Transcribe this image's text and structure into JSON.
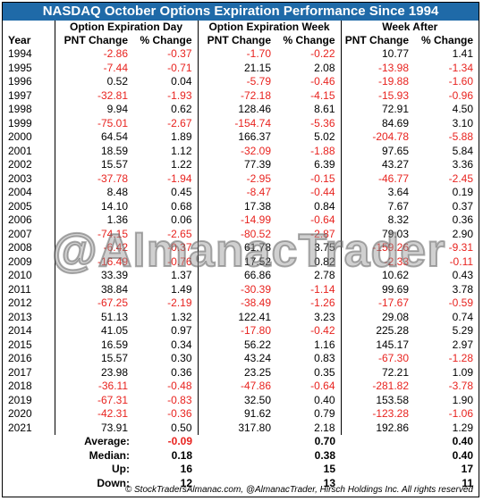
{
  "title": "NASDAQ October Options Expiration Performance Since 1994",
  "group_headers": [
    "Option Expiration Day",
    "Option Expiration Week",
    "Week After"
  ],
  "column_headers": [
    "Year",
    "PNT Change",
    "% Change",
    "PNT Change",
    "% Change",
    "PNT Change",
    "% Change"
  ],
  "rows": [
    [
      "1994",
      "-2.86",
      "-0.37",
      "-1.70",
      "-0.22",
      "10.77",
      "1.41"
    ],
    [
      "1995",
      "-7.44",
      "-0.71",
      "21.15",
      "2.08",
      "-13.98",
      "-1.34"
    ],
    [
      "1996",
      "0.52",
      "0.04",
      "-5.79",
      "-0.46",
      "-19.88",
      "-1.60"
    ],
    [
      "1997",
      "-32.81",
      "-1.93",
      "-72.18",
      "-4.15",
      "-15.93",
      "-0.96"
    ],
    [
      "1998",
      "9.94",
      "0.62",
      "128.46",
      "8.61",
      "72.91",
      "4.50"
    ],
    [
      "1999",
      "-75.01",
      "-2.67",
      "-154.74",
      "-5.36",
      "84.69",
      "3.10"
    ],
    [
      "2000",
      "64.54",
      "1.89",
      "166.37",
      "5.02",
      "-204.78",
      "-5.88"
    ],
    [
      "2001",
      "18.59",
      "1.12",
      "-32.09",
      "-1.88",
      "97.65",
      "5.84"
    ],
    [
      "2002",
      "15.57",
      "1.22",
      "77.39",
      "6.39",
      "43.27",
      "3.36"
    ],
    [
      "2003",
      "-37.78",
      "-1.94",
      "-2.95",
      "-0.15",
      "-46.77",
      "-2.45"
    ],
    [
      "2004",
      "8.48",
      "0.45",
      "-8.47",
      "-0.44",
      "3.64",
      "0.19"
    ],
    [
      "2005",
      "14.10",
      "0.68",
      "17.38",
      "0.84",
      "7.67",
      "0.37"
    ],
    [
      "2006",
      "1.36",
      "0.06",
      "-14.99",
      "-0.64",
      "8.32",
      "0.36"
    ],
    [
      "2007",
      "-74.15",
      "-2.65",
      "-80.52",
      "-2.87",
      "79.03",
      "2.90"
    ],
    [
      "2008",
      "-6.42",
      "-0.37",
      "61.78",
      "3.75",
      "-159.26",
      "-9.31"
    ],
    [
      "2009",
      "-16.49",
      "-0.76",
      "17.52",
      "0.82",
      "-2.33",
      "-0.11"
    ],
    [
      "2010",
      "33.39",
      "1.37",
      "66.86",
      "2.78",
      "10.62",
      "0.43"
    ],
    [
      "2011",
      "38.84",
      "1.49",
      "-30.39",
      "-1.14",
      "99.69",
      "3.78"
    ],
    [
      "2012",
      "-67.25",
      "-2.19",
      "-38.49",
      "-1.26",
      "-17.67",
      "-0.59"
    ],
    [
      "2013",
      "51.13",
      "1.32",
      "122.41",
      "3.23",
      "29.08",
      "0.74"
    ],
    [
      "2014",
      "41.05",
      "0.97",
      "-17.80",
      "-0.42",
      "225.28",
      "5.29"
    ],
    [
      "2015",
      "16.59",
      "0.34",
      "56.22",
      "1.16",
      "145.17",
      "2.97"
    ],
    [
      "2016",
      "15.57",
      "0.30",
      "43.24",
      "0.83",
      "-67.30",
      "-1.28"
    ],
    [
      "2017",
      "23.98",
      "0.36",
      "23.25",
      "0.35",
      "72.21",
      "1.09"
    ],
    [
      "2018",
      "-36.11",
      "-0.48",
      "-47.86",
      "-0.64",
      "-281.82",
      "-3.78"
    ],
    [
      "2019",
      "-67.31",
      "-0.83",
      "32.50",
      "0.40",
      "153.58",
      "1.90"
    ],
    [
      "2020",
      "-42.31",
      "-0.36",
      "91.62",
      "0.79",
      "-123.28",
      "-1.06"
    ],
    [
      "2021",
      "73.91",
      "0.50",
      "317.80",
      "2.18",
      "192.86",
      "1.29"
    ]
  ],
  "summary": [
    {
      "label": "Average:",
      "values": [
        "-0.09",
        "0.70",
        "0.40"
      ]
    },
    {
      "label": "Median:",
      "values": [
        "0.18",
        "0.38",
        "0.40"
      ]
    },
    {
      "label": "Up:",
      "values": [
        "16",
        "15",
        "17"
      ]
    },
    {
      "label": "Down:",
      "values": [
        "12",
        "13",
        "11"
      ]
    }
  ],
  "watermark": "@AlmanacTrader",
  "footer": "© StockTradersAlmanac.com, @AlmanacTrader, Hirsch Holdings Inc. All rights reserved",
  "colors": {
    "title_bg": "#1f6aa8",
    "negative": "#e8231f"
  }
}
